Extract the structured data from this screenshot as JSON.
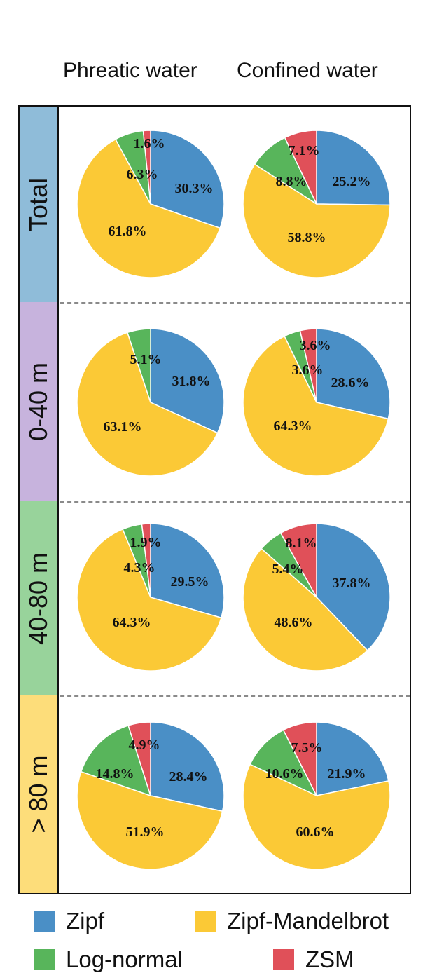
{
  "chart_data": {
    "type": "pie",
    "columns": [
      "Phreatic water",
      "Confined water"
    ],
    "rows": [
      "Total",
      "0-40 m",
      "40-80 m",
      "> 80 m"
    ],
    "categories": [
      "Zipf",
      "Zipf-Mandelbrot",
      "Log-normal",
      "ZSM"
    ],
    "colors": {
      "Zipf": "#4a8fc6",
      "Zipf-Mandelbrot": "#fbc936",
      "Log-normal": "#58b55b",
      "ZSM": "#e05059"
    },
    "row_colors": {
      "Total": "#8fbcd9",
      "0-40 m": "#c7b3dd",
      "40-80 m": "#98d39b",
      "> 80 m": "#fddd7a"
    },
    "panels": [
      {
        "row": "Total",
        "column": "Phreatic water",
        "values": {
          "Zipf": 30.3,
          "Zipf-Mandelbrot": 61.8,
          "Log-normal": 6.3,
          "ZSM": 1.6
        },
        "labels": {
          "Zipf": "30.3%",
          "Zipf-Mandelbrot": "61.8%",
          "Log-normal": "6.3%",
          "ZSM": "1.6%"
        }
      },
      {
        "row": "Total",
        "column": "Confined water",
        "values": {
          "Zipf": 25.2,
          "Zipf-Mandelbrot": 58.8,
          "Log-normal": 8.8,
          "ZSM": 7.1
        },
        "labels": {
          "Zipf": "25.2%",
          "Zipf-Mandelbrot": "58.8%",
          "Log-normal": "8.8%",
          "ZSM": "7.1%"
        }
      },
      {
        "row": "0-40 m",
        "column": "Phreatic water",
        "values": {
          "Zipf": 31.8,
          "Zipf-Mandelbrot": 63.1,
          "Log-normal": 5.1,
          "ZSM": 0
        },
        "labels": {
          "Zipf": "31.8%",
          "Zipf-Mandelbrot": "63.1%",
          "Log-normal": "5.1%",
          "ZSM": ""
        }
      },
      {
        "row": "0-40 m",
        "column": "Confined water",
        "values": {
          "Zipf": 28.6,
          "Zipf-Mandelbrot": 64.3,
          "Log-normal": 3.6,
          "ZSM": 3.6
        },
        "labels": {
          "Zipf": "28.6%",
          "Zipf-Mandelbrot": "64.3%",
          "Log-normal": "3.6%",
          "ZSM": "3.6%"
        }
      },
      {
        "row": "40-80 m",
        "column": "Phreatic water",
        "values": {
          "Zipf": 29.5,
          "Zipf-Mandelbrot": 64.3,
          "Log-normal": 4.3,
          "ZSM": 1.9
        },
        "labels": {
          "Zipf": "29.5%",
          "Zipf-Mandelbrot": "64.3%",
          "Log-normal": "4.3%",
          "ZSM": "1.9%"
        }
      },
      {
        "row": "40-80 m",
        "column": "Confined water",
        "values": {
          "Zipf": 37.8,
          "Zipf-Mandelbrot": 48.6,
          "Log-normal": 5.4,
          "ZSM": 8.1
        },
        "labels": {
          "Zipf": "37.8%",
          "Zipf-Mandelbrot": "48.6%",
          "Log-normal": "5.4%",
          "ZSM": "8.1%"
        }
      },
      {
        "row": "> 80 m",
        "column": "Phreatic water",
        "values": {
          "Zipf": 28.4,
          "Zipf-Mandelbrot": 51.9,
          "Log-normal": 14.8,
          "ZSM": 4.9
        },
        "labels": {
          "Zipf": "28.4%",
          "Zipf-Mandelbrot": "51.9%",
          "Log-normal": "14.8%",
          "ZSM": "4.9%"
        }
      },
      {
        "row": "> 80 m",
        "column": "Confined water",
        "values": {
          "Zipf": 21.9,
          "Zipf-Mandelbrot": 60.6,
          "Log-normal": 10.6,
          "ZSM": 7.5
        },
        "labels": {
          "Zipf": "21.9%",
          "Zipf-Mandelbrot": "60.6%",
          "Log-normal": "10.6%",
          "ZSM": "7.5%"
        }
      }
    ],
    "legend": [
      "Zipf",
      "Zipf-Mandelbrot",
      "Log-normal",
      "ZSM"
    ]
  }
}
